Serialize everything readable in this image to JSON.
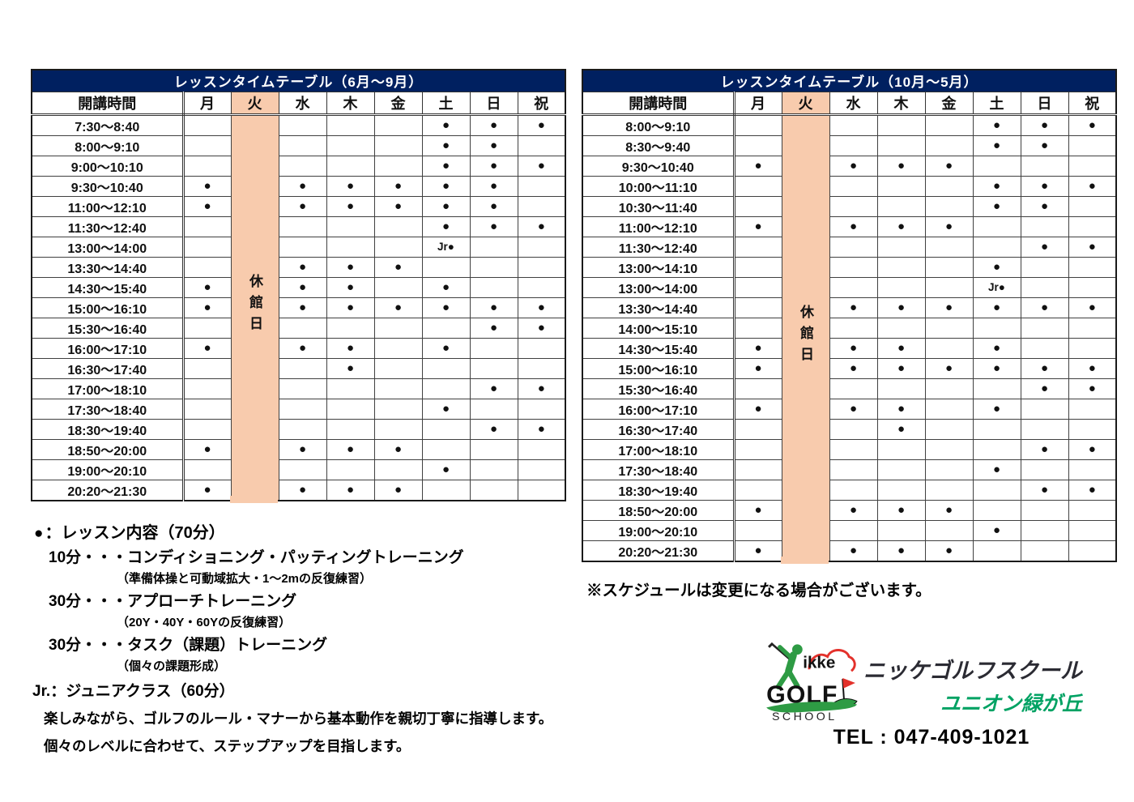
{
  "colors": {
    "header_navy": "#002060",
    "closed_peach": "#F8CBAD",
    "brand_green": "#00a263",
    "logo_green": "#2e9b44",
    "logo_red": "#e3312b"
  },
  "tables": [
    {
      "title": "レッスンタイムテーブル（6月～9月）",
      "time_header": "開講時間",
      "day_headers": [
        "月",
        "火",
        "水",
        "木",
        "金",
        "土",
        "日",
        "祝"
      ],
      "closed_day": "火",
      "closed_label": "休館日",
      "marks_order": [
        "月",
        "水",
        "木",
        "金",
        "土",
        "日",
        "祝"
      ],
      "rows": [
        {
          "time": "7:30～8:40",
          "marks": [
            "",
            "",
            "",
            "",
            "●",
            "●",
            "●"
          ]
        },
        {
          "time": "8:00～9:10",
          "marks": [
            "",
            "",
            "",
            "",
            "●",
            "●",
            ""
          ]
        },
        {
          "time": "9:00～10:10",
          "marks": [
            "",
            "",
            "",
            "",
            "●",
            "●",
            "●"
          ]
        },
        {
          "time": "9:30～10:40",
          "marks": [
            "●",
            "●",
            "●",
            "●",
            "●",
            "●",
            ""
          ]
        },
        {
          "time": "11:00～12:10",
          "marks": [
            "●",
            "●",
            "●",
            "●",
            "●",
            "●",
            ""
          ]
        },
        {
          "time": "11:30～12:40",
          "marks": [
            "",
            "",
            "",
            "",
            "●",
            "●",
            "●"
          ]
        },
        {
          "time": "13:00～14:00",
          "marks": [
            "",
            "",
            "",
            "",
            "Jr●",
            "",
            ""
          ]
        },
        {
          "time": "13:30～14:40",
          "marks": [
            "",
            "●",
            "●",
            "●",
            "",
            "",
            ""
          ]
        },
        {
          "time": "14:30～15:40",
          "marks": [
            "●",
            "●",
            "●",
            "",
            "●",
            "",
            ""
          ]
        },
        {
          "time": "15:00～16:10",
          "marks": [
            "●",
            "●",
            "●",
            "●",
            "●",
            "●",
            "●"
          ]
        },
        {
          "time": "15:30～16:40",
          "marks": [
            "",
            "",
            "",
            "",
            "",
            "●",
            "●"
          ]
        },
        {
          "time": "16:00～17:10",
          "marks": [
            "●",
            "●",
            "●",
            "",
            "●",
            "",
            ""
          ]
        },
        {
          "time": "16:30～17:40",
          "marks": [
            "",
            "",
            "●",
            "",
            "",
            "",
            ""
          ]
        },
        {
          "time": "17:00～18:10",
          "marks": [
            "",
            "",
            "",
            "",
            "",
            "●",
            "●"
          ]
        },
        {
          "time": "17:30～18:40",
          "marks": [
            "",
            "",
            "",
            "",
            "●",
            "",
            ""
          ]
        },
        {
          "time": "18:30～19:40",
          "marks": [
            "",
            "",
            "",
            "",
            "",
            "●",
            "●"
          ]
        },
        {
          "time": "18:50～20:00",
          "marks": [
            "●",
            "●",
            "●",
            "●",
            "",
            "",
            ""
          ]
        },
        {
          "time": "19:00～20:10",
          "marks": [
            "",
            "",
            "",
            "",
            "●",
            "",
            ""
          ]
        },
        {
          "time": "20:20～21:30",
          "marks": [
            "●",
            "●",
            "●",
            "●",
            "",
            "",
            ""
          ]
        }
      ]
    },
    {
      "title": "レッスンタイムテーブル（10月～5月）",
      "time_header": "開講時間",
      "day_headers": [
        "月",
        "火",
        "水",
        "木",
        "金",
        "土",
        "日",
        "祝"
      ],
      "closed_day": "火",
      "closed_label": "休館日",
      "marks_order": [
        "月",
        "水",
        "木",
        "金",
        "土",
        "日",
        "祝"
      ],
      "rows": [
        {
          "time": "8:00～9:10",
          "marks": [
            "",
            "",
            "",
            "",
            "●",
            "●",
            "●"
          ]
        },
        {
          "time": "8:30～9:40",
          "marks": [
            "",
            "",
            "",
            "",
            "●",
            "●",
            ""
          ]
        },
        {
          "time": "9:30～10:40",
          "marks": [
            "●",
            "●",
            "●",
            "●",
            "",
            "",
            ""
          ]
        },
        {
          "time": "10:00～11:10",
          "marks": [
            "",
            "",
            "",
            "",
            "●",
            "●",
            "●"
          ]
        },
        {
          "time": "10:30～11:40",
          "marks": [
            "",
            "",
            "",
            "",
            "●",
            "●",
            ""
          ]
        },
        {
          "time": "11:00～12:10",
          "marks": [
            "●",
            "●",
            "●",
            "●",
            "",
            "",
            ""
          ]
        },
        {
          "time": "11:30～12:40",
          "marks": [
            "",
            "",
            "",
            "",
            "",
            "●",
            "●"
          ]
        },
        {
          "time": "13:00～14:10",
          "marks": [
            "",
            "",
            "",
            "",
            "●",
            "",
            ""
          ]
        },
        {
          "time": "13:00～14:00",
          "marks": [
            "",
            "",
            "",
            "",
            "Jr●",
            "",
            ""
          ]
        },
        {
          "time": "13:30～14:40",
          "marks": [
            "",
            "●",
            "●",
            "●",
            "●",
            "●",
            "●"
          ]
        },
        {
          "time": "14:00～15:10",
          "marks": [
            "",
            "",
            "",
            "",
            "",
            "",
            ""
          ]
        },
        {
          "time": "14:30～15:40",
          "marks": [
            "●",
            "●",
            "●",
            "",
            "●",
            "",
            ""
          ]
        },
        {
          "time": "15:00～16:10",
          "marks": [
            "●",
            "●",
            "●",
            "●",
            "●",
            "●",
            "●"
          ]
        },
        {
          "time": "15:30～16:40",
          "marks": [
            "",
            "",
            "",
            "",
            "",
            "●",
            "●"
          ]
        },
        {
          "time": "16:00～17:10",
          "marks": [
            "●",
            "●",
            "●",
            "",
            "●",
            "",
            ""
          ]
        },
        {
          "time": "16:30～17:40",
          "marks": [
            "",
            "",
            "●",
            "",
            "",
            "",
            ""
          ]
        },
        {
          "time": "17:00～18:10",
          "marks": [
            "",
            "",
            "",
            "",
            "",
            "●",
            "●"
          ]
        },
        {
          "time": "17:30～18:40",
          "marks": [
            "",
            "",
            "",
            "",
            "●",
            "",
            ""
          ]
        },
        {
          "time": "18:30～19:40",
          "marks": [
            "",
            "",
            "",
            "",
            "",
            "●",
            "●"
          ]
        },
        {
          "time": "18:50～20:00",
          "marks": [
            "●",
            "●",
            "●",
            "●",
            "",
            "",
            ""
          ]
        },
        {
          "time": "19:00～20:10",
          "marks": [
            "",
            "",
            "",
            "",
            "●",
            "",
            ""
          ]
        },
        {
          "time": "20:20～21:30",
          "marks": [
            "●",
            "●",
            "●",
            "●",
            "",
            "",
            ""
          ]
        }
      ]
    }
  ],
  "legend": {
    "dot": "●",
    "title": "：レッスン内容（70分）",
    "items": [
      {
        "main": "10分・・・コンディショニング・パッティングトレーニング",
        "sub": "（準備体操と可動域拡大・1～2mの反復練習）"
      },
      {
        "main": "30分・・・アプローチトレーニング",
        "sub": "（20Y・40Y・60Yの反復練習）"
      },
      {
        "main": "30分・・・タスク（課題）トレーニング",
        "sub": "（個々の課題形成）"
      }
    ]
  },
  "junior": {
    "label": "Jr.：ジュニアクラス（60分）",
    "lines": [
      "楽しみながら、ゴルフのルール・マナーから基本動作を親切丁寧に指導します。",
      "個々のレベルに合わせて、ステップアップを目指します。"
    ]
  },
  "note": "※スケジュールは変更になる場合がございます。",
  "brand": {
    "logo_ikke": "ikke",
    "logo_golf": "GOLF",
    "logo_school": "SCHOOL",
    "school_name": "ニッケゴルフスクール",
    "branch_name": "ユニオン緑が丘",
    "tel": "TEL : 047-409-1021"
  }
}
